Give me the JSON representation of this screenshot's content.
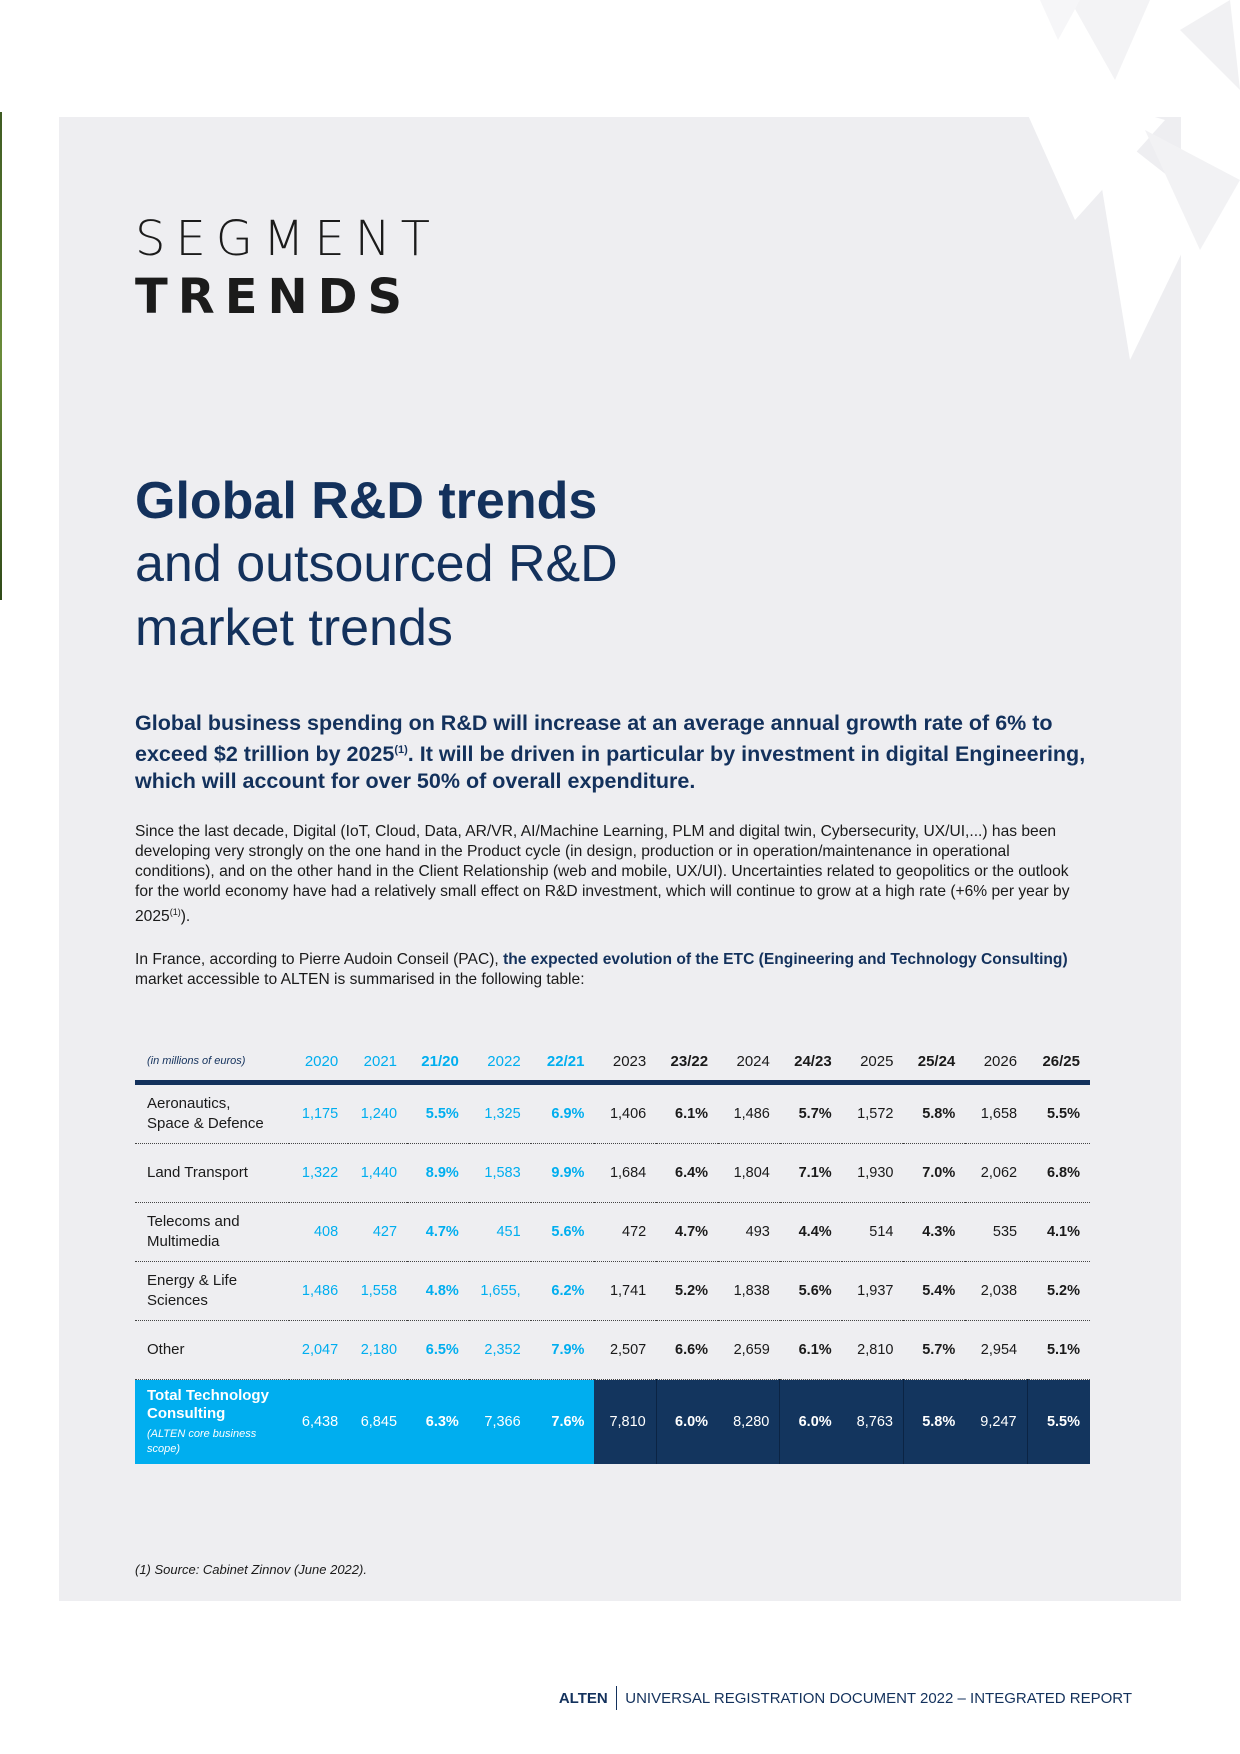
{
  "section": {
    "line1": "SEGMENT",
    "line2": "TRENDS"
  },
  "title": {
    "bold": "Global R&D trends",
    "light1": "and outsourced R&D",
    "light2": "market trends"
  },
  "lead": {
    "part1": "Global business spending on R&D will increase at an average annual growth rate of 6% to exceed $2 trillion by 2025",
    "sup": "(1)",
    "part2": ". It will be driven in particular by investment in digital Engineering, which will account for over 50% of overall expenditure."
  },
  "paragraph1": {
    "text": "Since the last decade, Digital (IoT, Cloud, Data, AR/VR, AI/Machine Learning, PLM and digital twin, Cybersecurity, UX/UI,...) has been developing very strongly on the one hand in the Product cycle (in design, production or in operation/maintenance in operational conditions), and on the other hand in the Client Relationship (web and mobile, UX/UI). Uncertainties related to geopolitics or the outlook for the world economy have had a relatively small effect on R&D investment, which will continue to grow at a high rate (+6% per year by 2025",
    "sup": "(1)",
    "end": ")."
  },
  "paragraph2": {
    "intro": "In France, according to Pierre Audoin Conseil (PAC), ",
    "bold": "the expected evolution of the ETC (Engineering and Technology Consulting)",
    "end": " market accessible to ALTEN is summarised in the following table:"
  },
  "table": {
    "unit_label": "(in millions of euros)",
    "headers": [
      "2020",
      "2021",
      "21/20",
      "2022",
      "22/21",
      "2023",
      "23/22",
      "2024",
      "24/23",
      "2025",
      "25/24",
      "2026",
      "26/25"
    ],
    "rows": [
      {
        "label1": "Aeronautics,",
        "label2": "Space & Defence",
        "values": [
          "1,175",
          "1,240",
          "5.5%",
          "1,325",
          "6.9%",
          "1,406",
          "6.1%",
          "1,486",
          "5.7%",
          "1,572",
          "5.8%",
          "1,658",
          "5.5%"
        ]
      },
      {
        "label1": "Land Transport",
        "label2": "",
        "values": [
          "1,322",
          "1,440",
          "8.9%",
          "1,583",
          "9.9%",
          "1,684",
          "6.4%",
          "1,804",
          "7.1%",
          "1,930",
          "7.0%",
          "2,062",
          "6.8%"
        ]
      },
      {
        "label1": "Telecoms and",
        "label2": "Multimedia",
        "values": [
          "408",
          "427",
          "4.7%",
          "451",
          "5.6%",
          "472",
          "4.7%",
          "493",
          "4.4%",
          "514",
          "4.3%",
          "535",
          "4.1%"
        ]
      },
      {
        "label1": "Energy & Life",
        "label2": "Sciences",
        "values": [
          "1,486",
          "1,558",
          "4.8%",
          "1,655,",
          "6.2%",
          "1,741",
          "5.2%",
          "1,838",
          "5.6%",
          "1,937",
          "5.4%",
          "2,038",
          "5.2%"
        ]
      },
      {
        "label1": "Other",
        "label2": "",
        "values": [
          "2,047",
          "2,180",
          "6.5%",
          "2,352",
          "7.9%",
          "2,507",
          "6.6%",
          "2,659",
          "6.1%",
          "2,810",
          "5.7%",
          "2,954",
          "5.1%"
        ]
      }
    ],
    "total": {
      "label": "Total Technology Consulting",
      "sublabel": "(ALTEN core business scope)",
      "values": [
        "6,438",
        "6,845",
        "6.3%",
        "7,366",
        "7.6%",
        "7,810",
        "6.0%",
        "8,280",
        "6.0%",
        "8,763",
        "5.8%",
        "9,247",
        "5.5%"
      ]
    }
  },
  "footnote": "(1)  Source: Cabinet Zinnov (June 2022).",
  "footer": {
    "brand": "ALTEN",
    "doc": "UNIVERSAL REGISTRATION DOCUMENT 2022 – INTEGRATED REPORT"
  },
  "colors": {
    "navy": "#13315c",
    "cyan": "#00aeef",
    "panel": "#eeeef1",
    "total_dark": "#13355e"
  }
}
